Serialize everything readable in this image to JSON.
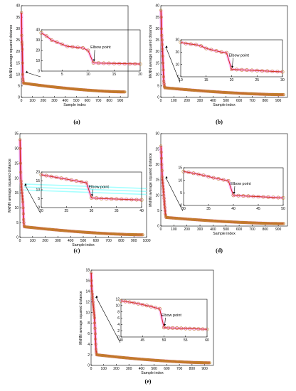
{
  "chart_data": [
    {
      "type": "line",
      "panel_label": "(a)",
      "xlabel": "Sample index",
      "ylabel": "MkNN average squared distance",
      "xlim": [
        0,
        970
      ],
      "ylim": [
        0,
        40
      ],
      "xticks": [
        "0",
        "100",
        "200",
        "300",
        "400",
        "500",
        "600",
        "700",
        "800",
        "900"
      ],
      "yticks": [
        "0",
        "5",
        "10",
        "15",
        "20",
        "25",
        "30",
        "35",
        "40"
      ],
      "head": [
        37,
        27,
        24,
        23,
        21,
        15,
        10,
        8,
        7
      ],
      "tail": {
        "start": 6.2,
        "end": 2.4
      },
      "inset": {
        "xlim": [
          1,
          20
        ],
        "ylim": [
          0,
          40
        ],
        "xticks": [
          "5",
          "10",
          "15",
          "20"
        ],
        "yticks": [
          "0",
          "10",
          "20",
          "30",
          "40"
        ],
        "x": [
          1,
          2,
          3,
          4,
          5,
          6,
          7,
          8,
          9,
          10,
          11,
          12,
          13,
          14,
          15,
          16,
          17,
          18,
          19,
          20
        ],
        "y": [
          37,
          34,
          30,
          28,
          26,
          24,
          23.5,
          23,
          22.5,
          20,
          8,
          7.8,
          7.6,
          7.5,
          7.4,
          7.3,
          7.2,
          7.1,
          7.0,
          6.8
        ],
        "annotation": "Elbow point",
        "elbow_x": 11
      }
    },
    {
      "type": "line",
      "panel_label": "(b)",
      "xlabel": "Sample index",
      "ylabel": "MkNN average squared distance",
      "xlim": [
        0,
        970
      ],
      "ylim": [
        0,
        40
      ],
      "xticks": [
        "0",
        "100",
        "200",
        "300",
        "400",
        "500",
        "600",
        "700",
        "800",
        "900"
      ],
      "yticks": [
        "0",
        "5",
        "10",
        "15",
        "20",
        "25",
        "30",
        "35",
        "40"
      ],
      "head": [
        38,
        35,
        30,
        27,
        25,
        23,
        21,
        18,
        15,
        12,
        9,
        7,
        6,
        5,
        4.5
      ],
      "tail": {
        "start": 4.2,
        "end": 1.2
      },
      "inset": {
        "xlim": [
          10,
          30
        ],
        "ylim": [
          0,
          30
        ],
        "xticks": [
          "10",
          "15",
          "20",
          "25",
          "30"
        ],
        "yticks": [
          "0",
          "10",
          "20",
          "30"
        ],
        "x": [
          10,
          11,
          12,
          13,
          14,
          15,
          16,
          17,
          18,
          19,
          20,
          21,
          22,
          23,
          24,
          25,
          26,
          27,
          28,
          29,
          30
        ],
        "y": [
          28,
          27,
          26.5,
          26,
          25,
          23,
          22,
          21,
          20,
          19.5,
          6,
          5.8,
          5.6,
          5.4,
          5.2,
          5.0,
          4.8,
          4.6,
          4.4,
          4.2,
          4.0
        ],
        "annotation": "Elbow point",
        "elbow_x": 20
      }
    },
    {
      "type": "line",
      "panel_label": "(c)",
      "xlabel": "Sample index",
      "ylabel": "MkNN average squared distance",
      "xlim": [
        0,
        1000
      ],
      "ylim": [
        0,
        35
      ],
      "xticks": [
        "0",
        "100",
        "200",
        "300",
        "400",
        "500",
        "600",
        "700",
        "800",
        "900",
        "1000"
      ],
      "yticks": [
        "0",
        "5",
        "10",
        "15",
        "20",
        "25",
        "30",
        "35"
      ],
      "head": [
        33,
        30,
        25,
        22,
        19,
        18,
        17,
        16,
        15,
        14,
        13,
        12,
        10,
        8,
        6,
        5,
        4
      ],
      "tail": {
        "start": 3.6,
        "end": 0.9
      },
      "inset": {
        "xlim": [
          20,
          40
        ],
        "ylim": [
          0,
          20
        ],
        "xticks": [
          "20",
          "25",
          "30",
          "35",
          "40"
        ],
        "yticks": [
          "0",
          "5",
          "10",
          "15",
          "20"
        ],
        "x": [
          20,
          21,
          22,
          23,
          24,
          25,
          26,
          27,
          28,
          29,
          30,
          31,
          32,
          33,
          34,
          35,
          36,
          37,
          38,
          39,
          40
        ],
        "y": [
          18.5,
          18,
          17.5,
          17,
          16.5,
          16,
          15.5,
          15,
          14.5,
          14,
          5.5,
          5.3,
          5.1,
          5.0,
          4.9,
          4.8,
          4.7,
          4.6,
          4.5,
          4.4,
          4.3
        ],
        "annotation": "Elbow point",
        "elbow_x": 30
      }
    },
    {
      "type": "line",
      "panel_label": "(d)",
      "xlabel": "Sample index",
      "ylabel": "MkNN average squared distance",
      "xlim": [
        0,
        970
      ],
      "ylim": [
        0,
        30
      ],
      "xticks": [
        "0",
        "100",
        "200",
        "300",
        "400",
        "500",
        "600",
        "700",
        "800",
        "900"
      ],
      "yticks": [
        "0",
        "5",
        "10",
        "15",
        "20",
        "25",
        "30"
      ],
      "head": [
        26,
        24,
        22,
        20,
        18,
        16,
        15,
        14,
        13,
        12,
        11,
        10,
        9,
        8,
        7,
        6,
        5,
        4,
        3.5,
        3
      ],
      "tail": {
        "start": 2.8,
        "end": 0.8
      },
      "inset": {
        "xlim": [
          30,
          50
        ],
        "ylim": [
          0,
          15
        ],
        "xticks": [
          "30",
          "35",
          "40",
          "45",
          "50"
        ],
        "yticks": [
          "0",
          "5",
          "10",
          "15"
        ],
        "x": [
          30,
          31,
          32,
          33,
          34,
          35,
          36,
          37,
          38,
          39,
          40,
          41,
          42,
          43,
          44,
          45,
          46,
          47,
          48,
          49,
          50
        ],
        "y": [
          13.5,
          13.2,
          12.8,
          12.4,
          12,
          11.5,
          11,
          10.6,
          10.2,
          9.8,
          4.0,
          3.9,
          3.8,
          3.7,
          3.6,
          3.5,
          3.4,
          3.3,
          3.2,
          3.1,
          3.0
        ],
        "annotation": "Elbow point",
        "elbow_x": 40
      }
    },
    {
      "type": "line",
      "panel_label": "(e)",
      "xlabel": "Sample index",
      "ylabel": "MkNN average squared distance",
      "xlim": [
        0,
        970
      ],
      "ylim": [
        0,
        18
      ],
      "xticks": [
        "0",
        "100",
        "200",
        "300",
        "400",
        "500",
        "600",
        "700",
        "800",
        "900"
      ],
      "yticks": [
        "0",
        "2",
        "4",
        "6",
        "8",
        "10",
        "12",
        "14",
        "16",
        "18"
      ],
      "head": [
        17.5,
        16,
        15,
        14,
        13.5,
        13,
        12.5,
        12,
        11.5,
        11,
        10.5,
        10,
        9.5,
        9,
        8,
        7,
        6,
        5,
        4,
        3,
        2.5,
        2.2
      ],
      "tail": {
        "start": 2.0,
        "end": 0.5
      },
      "inset": {
        "xlim": [
          40,
          60
        ],
        "ylim": [
          0,
          12
        ],
        "xticks": [
          "40",
          "45",
          "50",
          "55",
          "60"
        ],
        "yticks": [
          "0",
          "2",
          "4",
          "6",
          "8",
          "10",
          "12"
        ],
        "x": [
          40,
          41,
          42,
          43,
          44,
          45,
          46,
          47,
          48,
          49,
          50,
          51,
          52,
          53,
          54,
          55,
          56,
          57,
          58,
          59,
          60
        ],
        "y": [
          11.5,
          11.3,
          11.1,
          10.9,
          10.6,
          10.3,
          10,
          9.7,
          9.3,
          9.0,
          3.0,
          2.9,
          2.85,
          2.8,
          2.75,
          2.7,
          2.65,
          2.6,
          2.55,
          2.5,
          2.45
        ],
        "annotation": "Elbow point",
        "elbow_x": 50
      }
    }
  ],
  "colors": {
    "line": "#d62728",
    "marker_edge": "#c07f2a",
    "halo": "#ff80ff",
    "halo_cyan": "#80ffff"
  }
}
